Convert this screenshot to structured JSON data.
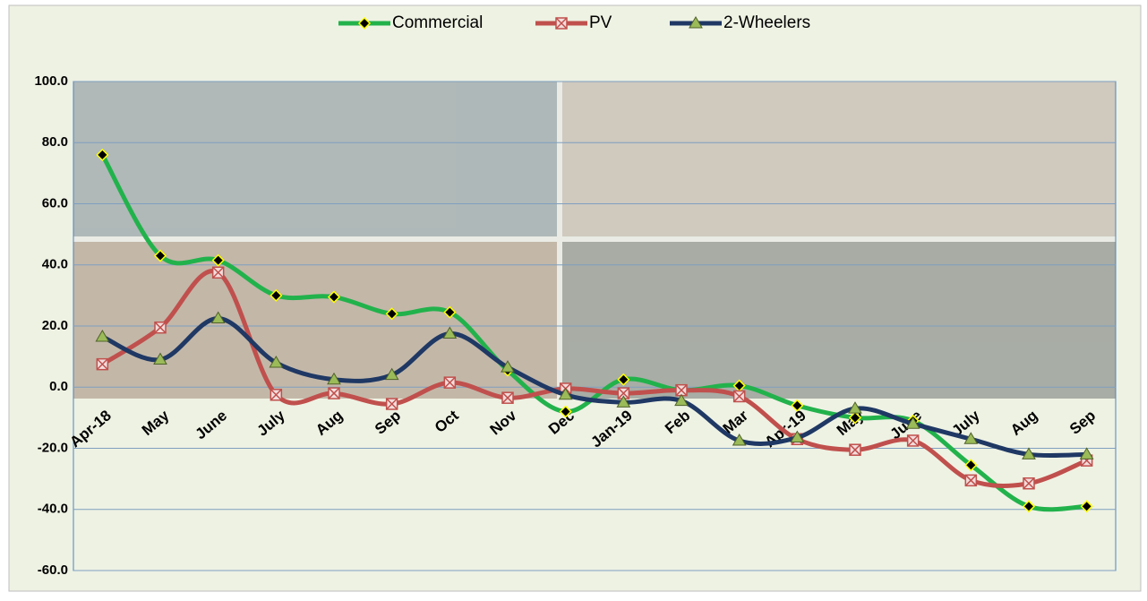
{
  "chart_data": {
    "type": "line",
    "categories": [
      "Apr-18",
      "May",
      "June",
      "July",
      "Aug",
      "Sep",
      "Oct",
      "Nov",
      "Dec",
      "Jan-19",
      "Feb",
      "Mar",
      "Apr-19",
      "May",
      "June",
      "July",
      "Aug",
      "Sep"
    ],
    "series": [
      {
        "name": "Commercial",
        "color": "#22b24c",
        "marker": "diamond",
        "values": [
          76,
          43,
          41.5,
          30,
          29.5,
          24,
          24.5,
          5.5,
          -8,
          2.5,
          -1,
          0.5,
          -6,
          -10,
          -11,
          -25.5,
          -39,
          -39
        ]
      },
      {
        "name": "PV",
        "color": "#c0504d",
        "marker": "square",
        "values": [
          7.5,
          19.5,
          37.5,
          -2.5,
          -2,
          -5.5,
          1.5,
          -3.5,
          -0.5,
          -2,
          -1,
          -3,
          -17,
          -20.5,
          -17.5,
          -30.5,
          -31.5,
          -24
        ]
      },
      {
        "name": "2-Wheelers",
        "color": "#1f3864",
        "marker": "triangle",
        "values": [
          16.5,
          9,
          22.5,
          8,
          2.5,
          4,
          17.5,
          6.5,
          -2.5,
          -5,
          -4.5,
          -17.5,
          -16.5,
          -7,
          -12,
          -17,
          -22,
          -22
        ]
      }
    ],
    "ylim": [
      -60,
      100
    ],
    "yticks": [
      {
        "value": -60,
        "label": "-60.0"
      },
      {
        "value": -40,
        "label": "-40.0"
      },
      {
        "value": -20,
        "label": "-20.0"
      },
      {
        "value": 0,
        "label": "0.0"
      },
      {
        "value": 20,
        "label": "20.0"
      },
      {
        "value": 40,
        "label": "40.0"
      },
      {
        "value": 60,
        "label": "60.0"
      },
      {
        "value": 80,
        "label": "80.0"
      },
      {
        "value": 100,
        "label": "100.0"
      }
    ],
    "grid": true,
    "legend": "top"
  }
}
